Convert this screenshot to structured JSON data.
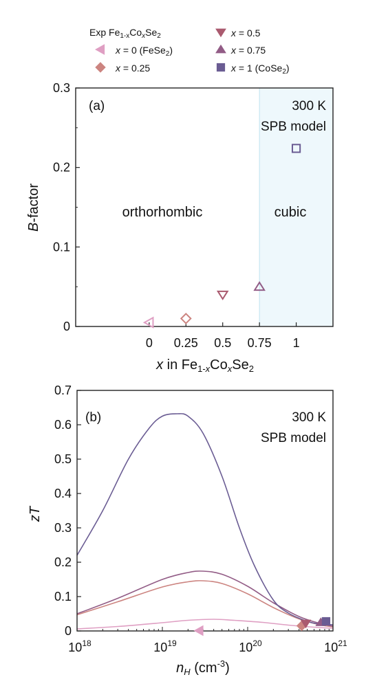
{
  "legend": {
    "header_prefix": "Exp Fe",
    "header_sub1": "1-x",
    "header_mid": "Co",
    "header_sub2": "x",
    "header_end": "Se",
    "header_sub3": "2",
    "entries": [
      {
        "x_symbol": "x",
        "value_text": " = 0 (FeSe",
        "sub": "2",
        "close": ")",
        "marker": "triangle-left",
        "color": "#df9fc3"
      },
      {
        "x_symbol": "x",
        "value_text": " = 0.25",
        "sub": "",
        "close": "",
        "marker": "diamond",
        "color": "#cc8480"
      },
      {
        "x_symbol": "x",
        "value_text": " = 0.5",
        "sub": "",
        "close": "",
        "marker": "triangle-down",
        "color": "#aa5a6f"
      },
      {
        "x_symbol": "x",
        "value_text": " = 0.75",
        "sub": "",
        "close": "",
        "marker": "triangle-up",
        "color": "#925c86"
      },
      {
        "x_symbol": "x",
        "value_text": " = 1 (CoSe",
        "sub": "2",
        "close": ")",
        "marker": "square",
        "color": "#6a5c93"
      }
    ]
  },
  "chart_data": [
    {
      "type": "scatter",
      "panel_label": "(a)",
      "annotation_lines": [
        "300 K",
        "SPB model"
      ],
      "region_labels": {
        "left": "orthorhombic",
        "right": "cubic"
      },
      "cubic_shading": {
        "from_x": 0.75,
        "color": "#eef8fc"
      },
      "ylabel_italic": "B",
      "ylabel_rest": "-factor",
      "xlabel": {
        "italic_x": "x",
        "mid": " in Fe",
        "sub1": "1-",
        "sub1_italic": "x",
        "co": "Co",
        "sub2_italic": "x",
        "se": "Se",
        "sub3": "2"
      },
      "xlim": [
        -0.5,
        1.25
      ],
      "ylim": [
        0,
        0.3
      ],
      "x_ticks": [
        0,
        0.25,
        0.5,
        0.75,
        1
      ],
      "x_tick_labels": [
        "0",
        "0.25",
        "0.5",
        "0.75",
        "1"
      ],
      "y_ticks": [
        0,
        0.1,
        0.2,
        0.3
      ],
      "y_tick_labels": [
        "0",
        "0.1",
        "0.2",
        "0.3"
      ],
      "points": [
        {
          "x": 0,
          "y": 0.005,
          "marker": "triangle-left",
          "color": "#df9fc3"
        },
        {
          "x": 0.25,
          "y": 0.01,
          "marker": "diamond",
          "color": "#cc8480"
        },
        {
          "x": 0.5,
          "y": 0.04,
          "marker": "triangle-down",
          "color": "#aa5a6f"
        },
        {
          "x": 0.75,
          "y": 0.05,
          "marker": "triangle-up",
          "color": "#925c86"
        },
        {
          "x": 1,
          "y": 0.224,
          "marker": "square",
          "color": "#6a5c93"
        }
      ]
    },
    {
      "type": "line",
      "panel_label": "(b)",
      "annotation_lines": [
        "300 K",
        "SPB model"
      ],
      "ylabel_italic": "zT",
      "xlabel": {
        "italic": "n",
        "sub": "H",
        "rest": " (cm",
        "sup": "-3",
        "close": ")"
      },
      "x_log": true,
      "xlim": [
        1e+18,
        1e+21
      ],
      "ylim": [
        0,
        0.7
      ],
      "x_tick_labels": [
        {
          "base": "10",
          "exp": "18"
        },
        {
          "base": "10",
          "exp": "19"
        },
        {
          "base": "10",
          "exp": "20"
        },
        {
          "base": "10",
          "exp": "21"
        }
      ],
      "y_ticks": [
        0,
        0.1,
        0.2,
        0.3,
        0.4,
        0.5,
        0.6,
        0.7
      ],
      "y_tick_labels": [
        "0",
        "0.1",
        "0.2",
        "0.3",
        "0.4",
        "0.5",
        "0.6",
        "0.7"
      ],
      "series": [
        {
          "color": "#df9fc3",
          "x": [
            1e+18,
            3e+18,
            1e+19,
            2e+19,
            4e+19,
            7e+19,
            1.5e+20,
            3e+20,
            6e+20,
            1e+21
          ],
          "y": [
            0.006,
            0.013,
            0.024,
            0.031,
            0.034,
            0.031,
            0.025,
            0.017,
            0.011,
            0.008
          ]
        },
        {
          "color": "#cc8480",
          "x": [
            1e+18,
            3e+18,
            1e+19,
            2e+19,
            3e+19,
            5e+19,
            1e+20,
            2e+20,
            4e+20,
            7e+20,
            1e+21
          ],
          "y": [
            0.047,
            0.085,
            0.128,
            0.143,
            0.146,
            0.138,
            0.108,
            0.068,
            0.035,
            0.018,
            0.012
          ]
        },
        {
          "color": "#925c86",
          "x": [
            1e+18,
            3e+18,
            1e+19,
            2e+19,
            3e+19,
            5e+19,
            1e+20,
            2e+20,
            4e+20,
            7e+20,
            1e+21
          ],
          "y": [
            0.05,
            0.095,
            0.15,
            0.17,
            0.174,
            0.165,
            0.13,
            0.082,
            0.042,
            0.022,
            0.014
          ]
        },
        {
          "color": "#6a5c93",
          "x": [
            1e+18,
            2e+18,
            4e+18,
            7e+18,
            1e+19,
            1.5e+19,
            2e+19,
            3e+19,
            5e+19,
            8e+19,
            1.2e+20,
            2e+20,
            3e+20,
            5e+20,
            7e+20,
            1e+21
          ],
          "y": [
            0.22,
            0.35,
            0.5,
            0.59,
            0.625,
            0.632,
            0.625,
            0.575,
            0.45,
            0.3,
            0.19,
            0.09,
            0.052,
            0.028,
            0.02,
            0.018
          ]
        }
      ],
      "points": [
        {
          "x": 2.7e+19,
          "y": 0.001,
          "marker": "triangle-left",
          "color": "#df9fc3"
        },
        {
          "x": 4.3e+20,
          "y": 0.015,
          "marker": "diamond",
          "color": "#cc8480"
        },
        {
          "x": 4.8e+20,
          "y": 0.022,
          "marker": "triangle-down",
          "color": "#aa5a6f"
        },
        {
          "x": 7.2e+20,
          "y": 0.025,
          "marker": "triangle-up",
          "color": "#925c86"
        },
        {
          "x": 8.3e+20,
          "y": 0.028,
          "marker": "square",
          "color": "#6a5c93"
        }
      ]
    }
  ]
}
